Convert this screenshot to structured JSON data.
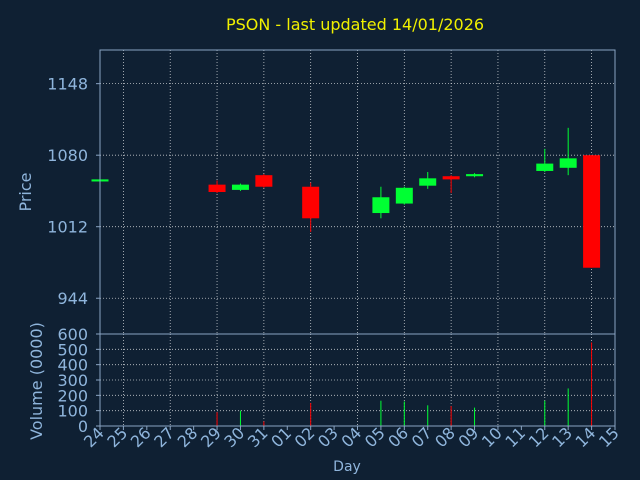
{
  "chart_data": [
    {
      "type": "candlestick",
      "title": "PSON - last updated 14/01/2026",
      "ylabel": "Price",
      "ylim": [
        910,
        1180
      ],
      "yticks": [
        944,
        1012,
        1080,
        1148
      ],
      "x_labels": [
        "24",
        "25",
        "26",
        "27",
        "28",
        "29",
        "30",
        "31",
        "01",
        "02",
        "03",
        "04",
        "05",
        "06",
        "07",
        "08",
        "09",
        "10",
        "11",
        "12",
        "13",
        "14",
        "15"
      ],
      "candles": [
        {
          "x": "24",
          "open": 1055,
          "close": 1057,
          "high": 1057,
          "low": 1055
        },
        {
          "x": "29",
          "open": 1052,
          "close": 1045,
          "high": 1056,
          "low": 1044
        },
        {
          "x": "30",
          "open": 1047,
          "close": 1052,
          "high": 1053,
          "low": 1046
        },
        {
          "x": "31",
          "open": 1061,
          "close": 1050,
          "high": 1062,
          "low": 1049
        },
        {
          "x": "02",
          "open": 1050,
          "close": 1020,
          "high": 1054,
          "low": 1007
        },
        {
          "x": "05",
          "open": 1025,
          "close": 1040,
          "high": 1050,
          "low": 1020
        },
        {
          "x": "06",
          "open": 1034,
          "close": 1049,
          "high": 1050,
          "low": 1033
        },
        {
          "x": "07",
          "open": 1051,
          "close": 1058,
          "high": 1064,
          "low": 1048
        },
        {
          "x": "08",
          "open": 1060,
          "close": 1057,
          "high": 1061,
          "low": 1044
        },
        {
          "x": "09",
          "open": 1060,
          "close": 1062,
          "high": 1063,
          "low": 1059
        },
        {
          "x": "12",
          "open": 1065,
          "close": 1072,
          "high": 1086,
          "low": 1064
        },
        {
          "x": "13",
          "open": 1068,
          "close": 1077,
          "high": 1106,
          "low": 1061
        },
        {
          "x": "14",
          "open": 1080,
          "close": 973,
          "high": 1080,
          "low": 973
        }
      ]
    },
    {
      "type": "bar",
      "xlabel": "Day",
      "ylabel": "Volume (0000)",
      "ylim": [
        0,
        600
      ],
      "yticks": [
        0,
        100,
        200,
        300,
        400,
        500,
        600
      ],
      "bars": [
        {
          "x": "24",
          "value": 5,
          "direction": "up"
        },
        {
          "x": "29",
          "value": 90,
          "direction": "down"
        },
        {
          "x": "30",
          "value": 100,
          "direction": "up"
        },
        {
          "x": "31",
          "value": 30,
          "direction": "down"
        },
        {
          "x": "02",
          "value": 150,
          "direction": "down"
        },
        {
          "x": "05",
          "value": 165,
          "direction": "up"
        },
        {
          "x": "06",
          "value": 160,
          "direction": "up"
        },
        {
          "x": "07",
          "value": 135,
          "direction": "up"
        },
        {
          "x": "08",
          "value": 130,
          "direction": "down"
        },
        {
          "x": "09",
          "value": 120,
          "direction": "up"
        },
        {
          "x": "12",
          "value": 165,
          "direction": "up"
        },
        {
          "x": "13",
          "value": 245,
          "direction": "up"
        },
        {
          "x": "14",
          "value": 545,
          "direction": "down"
        }
      ]
    }
  ],
  "colors": {
    "background": "#0f2033",
    "plot_border": "#8aa4c3",
    "grid": "#ffffff",
    "title": "#f0f000",
    "labels": "#8fb5dc",
    "up": "#00ff33",
    "down": "#ff0000"
  }
}
